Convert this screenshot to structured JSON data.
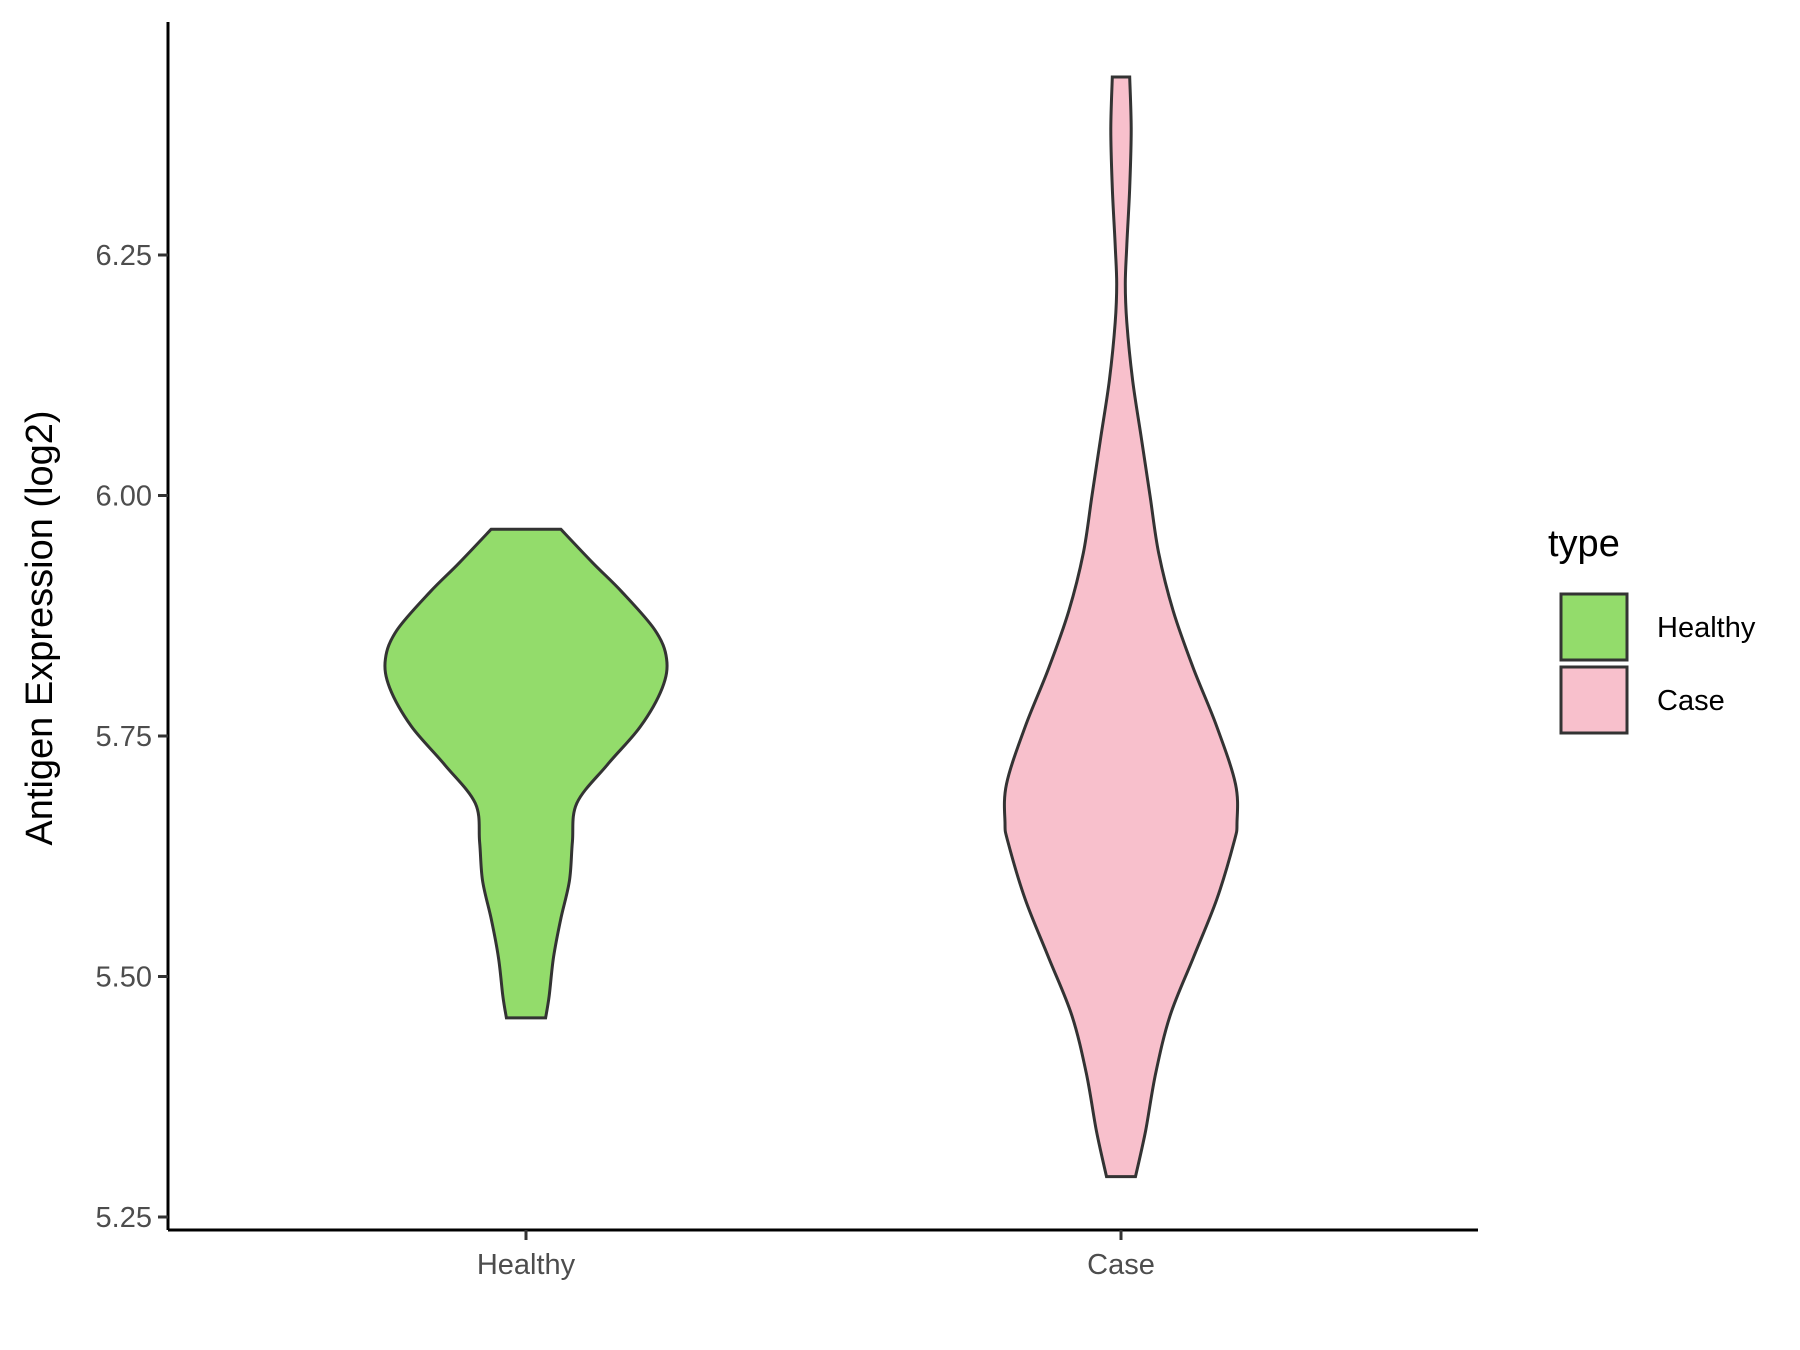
{
  "chart_data": {
    "type": "violin",
    "ylabel": "Antigen Expression (log2)",
    "xlabel": "",
    "categories": [
      "Healthy",
      "Case"
    ],
    "ylim": [
      5.24,
      6.5
    ],
    "yticks": [
      5.25,
      5.5,
      5.75,
      6.0,
      6.25
    ],
    "ytick_labels": [
      "5.25",
      "5.50",
      "5.75",
      "6.00",
      "6.25"
    ],
    "grid": false,
    "legend": {
      "title": "type",
      "position": "right",
      "entries": [
        {
          "label": "Healthy",
          "color": "#93DC6B"
        },
        {
          "label": "Case",
          "color": "#F8C0CC"
        }
      ]
    },
    "series": [
      {
        "category": "Healthy",
        "color": "#93DC6B",
        "min": 5.457,
        "max": 5.965,
        "density_profile": [
          [
            5.457,
            0.135
          ],
          [
            5.48,
            0.16
          ],
          [
            5.52,
            0.19
          ],
          [
            5.56,
            0.24
          ],
          [
            5.6,
            0.3
          ],
          [
            5.64,
            0.32
          ],
          [
            5.68,
            0.35
          ],
          [
            5.72,
            0.56
          ],
          [
            5.76,
            0.79
          ],
          [
            5.8,
            0.94
          ],
          [
            5.83,
            0.97
          ],
          [
            5.86,
            0.89
          ],
          [
            5.9,
            0.66
          ],
          [
            5.93,
            0.46
          ],
          [
            5.965,
            0.24
          ]
        ]
      },
      {
        "category": "Case",
        "color": "#F8C0CC",
        "min": 5.292,
        "max": 6.435,
        "density_profile": [
          [
            5.292,
            0.1
          ],
          [
            5.34,
            0.17
          ],
          [
            5.4,
            0.24
          ],
          [
            5.46,
            0.34
          ],
          [
            5.52,
            0.5
          ],
          [
            5.58,
            0.66
          ],
          [
            5.64,
            0.78
          ],
          [
            5.66,
            0.8
          ],
          [
            5.7,
            0.79
          ],
          [
            5.76,
            0.66
          ],
          [
            5.82,
            0.5
          ],
          [
            5.88,
            0.36
          ],
          [
            5.94,
            0.26
          ],
          [
            6.0,
            0.2
          ],
          [
            6.06,
            0.14
          ],
          [
            6.12,
            0.08
          ],
          [
            6.18,
            0.04
          ],
          [
            6.22,
            0.03
          ],
          [
            6.26,
            0.04
          ],
          [
            6.32,
            0.06
          ],
          [
            6.38,
            0.07
          ],
          [
            6.435,
            0.06
          ]
        ]
      }
    ]
  }
}
